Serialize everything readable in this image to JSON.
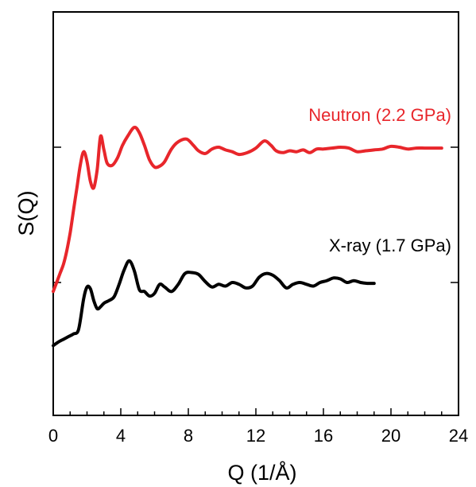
{
  "chart_data": {
    "type": "line",
    "title": "",
    "xlabel": "Q (1/Å)",
    "ylabel": "S(Q)",
    "xlim": [
      0,
      24
    ],
    "xticks": [
      "0",
      "4",
      "8",
      "12",
      "16",
      "20",
      "24"
    ],
    "x_tick_values": [
      0,
      4,
      8,
      12,
      16,
      20,
      24
    ],
    "y_ticks_unlabeled": 2,
    "grid": false,
    "legend": "inline labels",
    "series": [
      {
        "name": "Neutron (2.2 GPa)",
        "color": "#e8262b",
        "x": [
          0.0,
          0.2,
          0.4,
          0.6,
          0.8,
          1.0,
          1.2,
          1.4,
          1.6,
          1.8,
          2.0,
          2.2,
          2.4,
          2.6,
          2.8,
          3.0,
          3.2,
          3.5,
          3.8,
          4.1,
          4.4,
          4.8,
          5.1,
          5.4,
          5.7,
          6.0,
          6.3,
          6.6,
          7.0,
          7.4,
          7.9,
          8.3,
          8.6,
          9.0,
          9.4,
          9.8,
          10.2,
          10.6,
          11.0,
          11.5,
          12.0,
          12.5,
          12.9,
          13.2,
          13.6,
          14.0,
          14.4,
          14.8,
          15.2,
          15.6,
          16.0,
          16.5,
          17.0,
          17.5,
          18.0,
          18.5,
          19.0,
          19.5,
          20.0,
          20.5,
          21.0,
          21.5,
          22.0,
          22.5,
          23.0
        ],
        "y": [
          -0.1,
          0.0,
          0.1,
          0.2,
          0.35,
          0.55,
          0.8,
          1.05,
          1.3,
          1.45,
          1.34,
          1.12,
          1.05,
          1.25,
          1.62,
          1.47,
          1.32,
          1.3,
          1.38,
          1.52,
          1.62,
          1.72,
          1.66,
          1.52,
          1.36,
          1.28,
          1.29,
          1.34,
          1.48,
          1.56,
          1.59,
          1.52,
          1.46,
          1.43,
          1.48,
          1.5,
          1.47,
          1.45,
          1.42,
          1.44,
          1.49,
          1.57,
          1.52,
          1.46,
          1.44,
          1.46,
          1.45,
          1.47,
          1.44,
          1.48,
          1.48,
          1.49,
          1.5,
          1.49,
          1.45,
          1.46,
          1.47,
          1.48,
          1.51,
          1.5,
          1.48,
          1.49,
          1.49,
          1.49,
          1.49
        ]
      },
      {
        "name": "X-ray (1.7 GPa)",
        "color": "#000000",
        "x": [
          0.0,
          0.3,
          0.6,
          0.9,
          1.2,
          1.5,
          1.8,
          2.0,
          2.2,
          2.4,
          2.6,
          2.8,
          3.0,
          3.3,
          3.6,
          3.9,
          4.2,
          4.5,
          4.8,
          5.1,
          5.4,
          5.7,
          6.0,
          6.3,
          6.6,
          7.0,
          7.4,
          7.8,
          8.2,
          8.6,
          9.0,
          9.4,
          9.8,
          10.2,
          10.6,
          11.0,
          11.4,
          11.8,
          12.2,
          12.6,
          13.0,
          13.4,
          13.8,
          14.2,
          14.6,
          15.0,
          15.4,
          15.8,
          16.2,
          16.6,
          17.0,
          17.4,
          17.8,
          18.2,
          18.6,
          19.0
        ],
        "y": [
          -0.7,
          -0.66,
          -0.63,
          -0.6,
          -0.57,
          -0.52,
          -0.18,
          -0.05,
          -0.07,
          -0.2,
          -0.29,
          -0.27,
          -0.23,
          -0.2,
          -0.16,
          -0.02,
          0.14,
          0.24,
          0.13,
          -0.08,
          -0.1,
          -0.15,
          -0.12,
          -0.02,
          -0.05,
          -0.1,
          -0.02,
          0.1,
          0.11,
          0.09,
          0.01,
          -0.05,
          -0.02,
          -0.04,
          0.0,
          -0.02,
          -0.06,
          -0.04,
          0.06,
          0.1,
          0.08,
          0.02,
          -0.06,
          -0.02,
          0.0,
          -0.02,
          -0.04,
          0.0,
          0.02,
          0.05,
          0.04,
          0.0,
          0.02,
          0.0,
          -0.01,
          -0.01
        ]
      }
    ]
  }
}
